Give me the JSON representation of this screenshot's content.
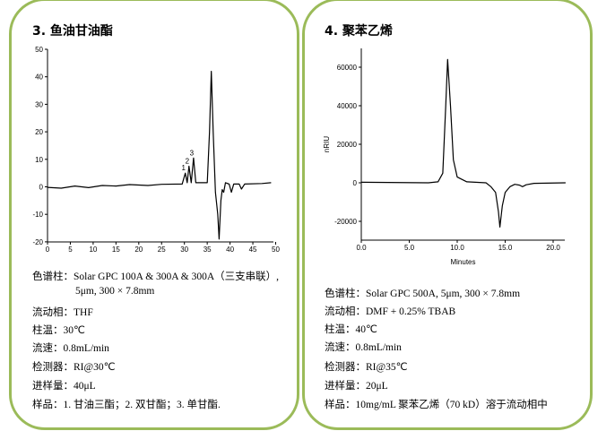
{
  "panels": [
    {
      "title": "3.   鱼油甘油酯",
      "lines": [
        "色谱柱：Solar GPC 100A & 300A & 300A（三支串联）,",
        "5μm, 300  × 7.8mm",
        "流动相：THF",
        "柱温：30℃",
        "流速：0.8mL/min",
        "检测器：RI@30℃",
        "进样量：40μL",
        "样品：1. 甘油三酯；2. 双甘酯；3. 单甘酯."
      ]
    },
    {
      "title": "4.   聚苯乙烯",
      "lines": [
        "色谱柱：Solar GPC 500A, 5μm, 300  × 7.8mm",
        "流动相：DMF + 0.25% TBAB",
        "柱温：40℃",
        "流速：0.8mL/min",
        "检测器：RI@35℃",
        "进样量：20μL",
        "样品：10mg/mL 聚苯乙烯（70 kD）溶于流动相中"
      ]
    }
  ],
  "colors": {
    "border": "#9bbb59",
    "line": "#000000"
  },
  "chart_data": [
    {
      "type": "line",
      "xlim": [
        0,
        49
      ],
      "ylim": [
        -20,
        50
      ],
      "xticks": [
        "0",
        "5",
        "10",
        "15",
        "20",
        "25",
        "30",
        "35",
        "40",
        "45",
        "50"
      ],
      "yticks": [
        "-20",
        "-10",
        "0",
        "10",
        "20",
        "30",
        "40",
        "50"
      ],
      "annotations": [
        {
          "text": "1",
          "x": 30.2,
          "y": 5
        },
        {
          "text": "2",
          "x": 31,
          "y": 7.5
        },
        {
          "text": "3",
          "x": 32,
          "y": 10.5
        }
      ],
      "x": [
        0,
        3,
        6,
        9,
        12,
        15,
        18,
        22,
        25,
        29.5,
        30.2,
        30.6,
        31,
        31.5,
        32,
        32.5,
        35,
        35.5,
        35.9,
        36.3,
        36.8,
        37.3,
        37.6,
        38,
        38.3,
        38.6,
        39,
        39.8,
        40.3,
        40.8,
        42,
        42.5,
        43.2,
        47,
        49
      ],
      "y": [
        -0.2,
        -0.5,
        0.3,
        -0.3,
        0.5,
        0.3,
        0.8,
        0.5,
        0.9,
        1,
        5,
        1.5,
        7.5,
        1.5,
        10.5,
        1.5,
        1.5,
        20,
        42,
        20,
        -2,
        -10,
        -19,
        -5,
        -1,
        -2,
        1.5,
        1,
        -2,
        1,
        1,
        -0.8,
        1,
        1.2,
        1.5
      ]
    },
    {
      "type": "line",
      "xlim": [
        0,
        21.3
      ],
      "ylim": [
        -30000,
        70000
      ],
      "xlabel": "Minutes",
      "ylabel": "nRIU",
      "xticks": [
        "0.0",
        "5.0",
        "10.0",
        "15.0",
        "20.0"
      ],
      "yticks": [
        "-20000",
        "0",
        "20000",
        "40000",
        "60000"
      ],
      "x": [
        0,
        7,
        8,
        8.5,
        8.8,
        9.0,
        9.3,
        9.6,
        10,
        11,
        13,
        13.5,
        14,
        14.3,
        14.45,
        14.7,
        15,
        15.5,
        16,
        16.5,
        16.8,
        17.2,
        18,
        21.3
      ],
      "y": [
        300,
        0,
        500,
        5000,
        40000,
        64000,
        40000,
        12000,
        3000,
        500,
        0,
        -2000,
        -5000,
        -15000,
        -23000,
        -12000,
        -5000,
        -2000,
        -800,
        -1200,
        -2000,
        -1000,
        -300,
        0
      ]
    }
  ]
}
